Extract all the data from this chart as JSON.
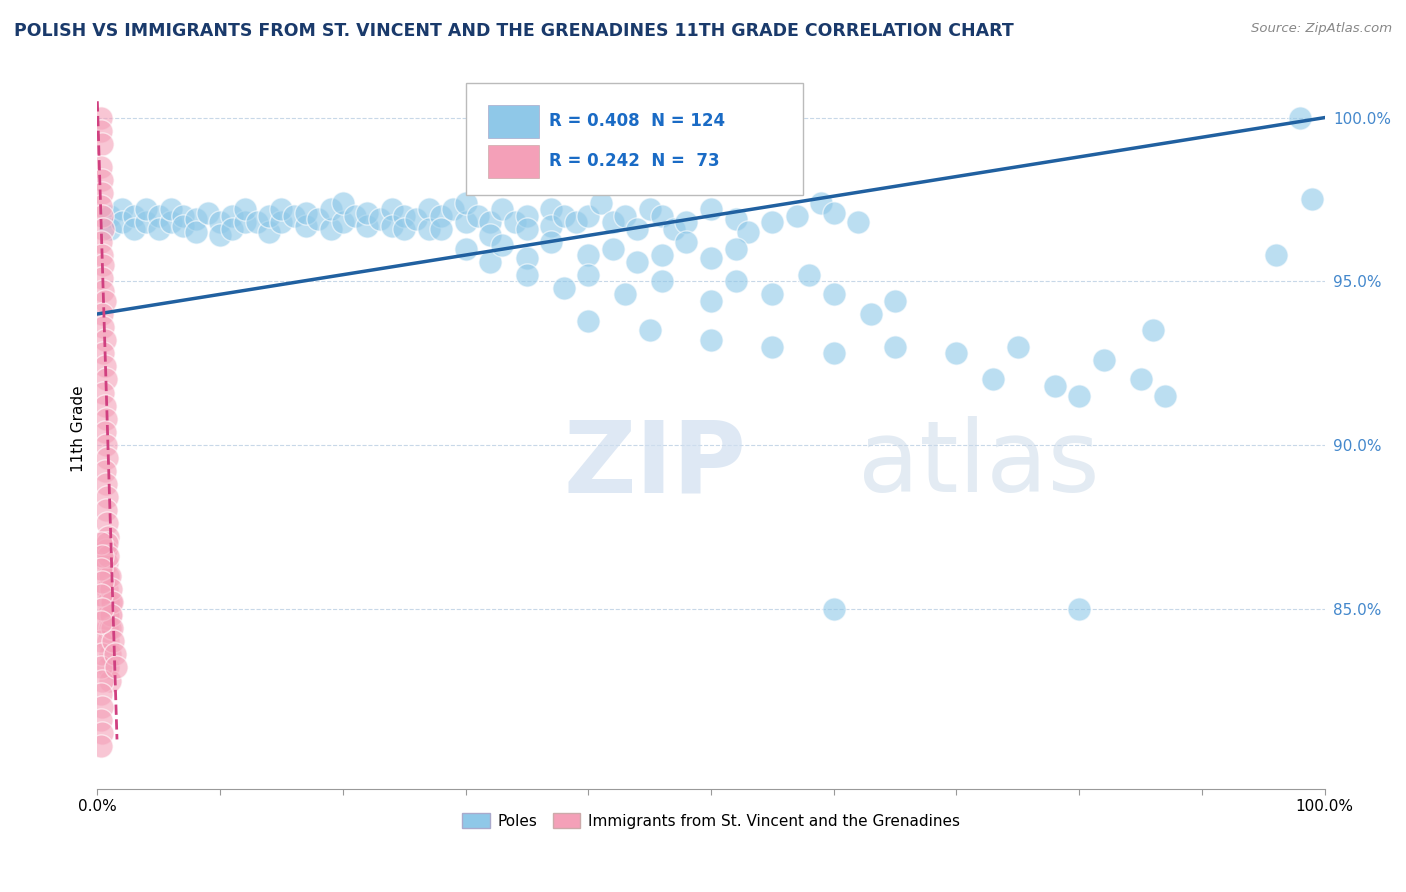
{
  "title": "POLISH VS IMMIGRANTS FROM ST. VINCENT AND THE GRENADINES 11TH GRADE CORRELATION CHART",
  "source": "Source: ZipAtlas.com",
  "ylabel": "11th Grade",
  "right_yticks": [
    "85.0%",
    "90.0%",
    "95.0%",
    "100.0%"
  ],
  "right_ytick_vals": [
    0.85,
    0.9,
    0.95,
    1.0
  ],
  "legend_blue_R": "R = 0.408",
  "legend_blue_N": "N = 124",
  "legend_pink_R": "R = 0.242",
  "legend_pink_N": "N =  73",
  "legend_label_blue": "Poles",
  "legend_label_pink": "Immigrants from St. Vincent and the Grenadines",
  "blue_color": "#8fc8e8",
  "pink_color": "#f4a0b8",
  "line_blue_color": "#2060a0",
  "line_pink_color": "#d04080",
  "title_color": "#1a3a6b",
  "legend_text_color": "#1a6bc5",
  "blue_dots": [
    [
      0.01,
      0.97
    ],
    [
      0.01,
      0.966
    ],
    [
      0.02,
      0.972
    ],
    [
      0.02,
      0.968
    ],
    [
      0.03,
      0.97
    ],
    [
      0.03,
      0.966
    ],
    [
      0.04,
      0.968
    ],
    [
      0.04,
      0.972
    ],
    [
      0.05,
      0.97
    ],
    [
      0.05,
      0.966
    ],
    [
      0.06,
      0.968
    ],
    [
      0.06,
      0.972
    ],
    [
      0.07,
      0.97
    ],
    [
      0.07,
      0.967
    ],
    [
      0.08,
      0.969
    ],
    [
      0.08,
      0.965
    ],
    [
      0.09,
      0.971
    ],
    [
      0.1,
      0.968
    ],
    [
      0.1,
      0.964
    ],
    [
      0.11,
      0.97
    ],
    [
      0.11,
      0.966
    ],
    [
      0.12,
      0.968
    ],
    [
      0.12,
      0.972
    ],
    [
      0.13,
      0.968
    ],
    [
      0.14,
      0.965
    ],
    [
      0.14,
      0.97
    ],
    [
      0.15,
      0.968
    ],
    [
      0.15,
      0.972
    ],
    [
      0.16,
      0.97
    ],
    [
      0.17,
      0.967
    ],
    [
      0.17,
      0.971
    ],
    [
      0.18,
      0.969
    ],
    [
      0.19,
      0.966
    ],
    [
      0.19,
      0.972
    ],
    [
      0.2,
      0.968
    ],
    [
      0.2,
      0.974
    ],
    [
      0.21,
      0.97
    ],
    [
      0.22,
      0.967
    ],
    [
      0.22,
      0.971
    ],
    [
      0.23,
      0.969
    ],
    [
      0.24,
      0.972
    ],
    [
      0.24,
      0.967
    ],
    [
      0.25,
      0.97
    ],
    [
      0.25,
      0.966
    ],
    [
      0.26,
      0.969
    ],
    [
      0.27,
      0.972
    ],
    [
      0.27,
      0.966
    ],
    [
      0.28,
      0.97
    ],
    [
      0.28,
      0.966
    ],
    [
      0.29,
      0.972
    ],
    [
      0.3,
      0.968
    ],
    [
      0.3,
      0.974
    ],
    [
      0.31,
      0.97
    ],
    [
      0.32,
      0.968
    ],
    [
      0.32,
      0.964
    ],
    [
      0.33,
      0.972
    ],
    [
      0.34,
      0.968
    ],
    [
      0.35,
      0.97
    ],
    [
      0.35,
      0.966
    ],
    [
      0.37,
      0.972
    ],
    [
      0.37,
      0.967
    ],
    [
      0.38,
      0.97
    ],
    [
      0.39,
      0.968
    ],
    [
      0.4,
      0.97
    ],
    [
      0.41,
      0.974
    ],
    [
      0.42,
      0.968
    ],
    [
      0.43,
      0.97
    ],
    [
      0.44,
      0.966
    ],
    [
      0.45,
      0.972
    ],
    [
      0.46,
      0.97
    ],
    [
      0.47,
      0.966
    ],
    [
      0.48,
      0.968
    ],
    [
      0.5,
      0.972
    ],
    [
      0.52,
      0.969
    ],
    [
      0.53,
      0.965
    ],
    [
      0.55,
      0.968
    ],
    [
      0.57,
      0.97
    ],
    [
      0.59,
      0.974
    ],
    [
      0.6,
      0.971
    ],
    [
      0.62,
      0.968
    ],
    [
      0.3,
      0.96
    ],
    [
      0.32,
      0.956
    ],
    [
      0.33,
      0.961
    ],
    [
      0.35,
      0.957
    ],
    [
      0.37,
      0.962
    ],
    [
      0.4,
      0.958
    ],
    [
      0.42,
      0.96
    ],
    [
      0.44,
      0.956
    ],
    [
      0.46,
      0.958
    ],
    [
      0.48,
      0.962
    ],
    [
      0.5,
      0.957
    ],
    [
      0.52,
      0.96
    ],
    [
      0.35,
      0.952
    ],
    [
      0.38,
      0.948
    ],
    [
      0.4,
      0.952
    ],
    [
      0.43,
      0.946
    ],
    [
      0.46,
      0.95
    ],
    [
      0.5,
      0.944
    ],
    [
      0.52,
      0.95
    ],
    [
      0.55,
      0.946
    ],
    [
      0.58,
      0.952
    ],
    [
      0.6,
      0.946
    ],
    [
      0.63,
      0.94
    ],
    [
      0.65,
      0.944
    ],
    [
      0.4,
      0.938
    ],
    [
      0.45,
      0.935
    ],
    [
      0.5,
      0.932
    ],
    [
      0.55,
      0.93
    ],
    [
      0.6,
      0.928
    ],
    [
      0.65,
      0.93
    ],
    [
      0.7,
      0.928
    ],
    [
      0.73,
      0.92
    ],
    [
      0.78,
      0.918
    ],
    [
      0.8,
      0.915
    ],
    [
      0.75,
      0.93
    ],
    [
      0.82,
      0.926
    ],
    [
      0.85,
      0.92
    ],
    [
      0.87,
      0.915
    ],
    [
      0.8,
      0.85
    ],
    [
      0.6,
      0.85
    ],
    [
      0.98,
      1.0
    ],
    [
      0.86,
      0.935
    ],
    [
      0.96,
      0.958
    ],
    [
      0.99,
      0.975
    ]
  ],
  "pink_dots": [
    [
      0.003,
      1.0
    ],
    [
      0.003,
      0.996
    ],
    [
      0.004,
      0.992
    ],
    [
      0.003,
      0.985
    ],
    [
      0.004,
      0.981
    ],
    [
      0.004,
      0.977
    ],
    [
      0.003,
      0.973
    ],
    [
      0.004,
      0.97
    ],
    [
      0.005,
      0.966
    ],
    [
      0.003,
      0.962
    ],
    [
      0.004,
      0.958
    ],
    [
      0.005,
      0.955
    ],
    [
      0.004,
      0.951
    ],
    [
      0.005,
      0.947
    ],
    [
      0.006,
      0.944
    ],
    [
      0.004,
      0.94
    ],
    [
      0.005,
      0.936
    ],
    [
      0.006,
      0.932
    ],
    [
      0.005,
      0.928
    ],
    [
      0.006,
      0.924
    ],
    [
      0.007,
      0.92
    ],
    [
      0.005,
      0.916
    ],
    [
      0.006,
      0.912
    ],
    [
      0.007,
      0.908
    ],
    [
      0.006,
      0.904
    ],
    [
      0.007,
      0.9
    ],
    [
      0.008,
      0.896
    ],
    [
      0.006,
      0.892
    ],
    [
      0.007,
      0.888
    ],
    [
      0.008,
      0.884
    ],
    [
      0.007,
      0.88
    ],
    [
      0.008,
      0.876
    ],
    [
      0.009,
      0.872
    ],
    [
      0.007,
      0.868
    ],
    [
      0.008,
      0.864
    ],
    [
      0.009,
      0.86
    ],
    [
      0.008,
      0.856
    ],
    [
      0.009,
      0.852
    ],
    [
      0.01,
      0.848
    ],
    [
      0.008,
      0.844
    ],
    [
      0.009,
      0.84
    ],
    [
      0.01,
      0.836
    ],
    [
      0.009,
      0.832
    ],
    [
      0.01,
      0.828
    ],
    [
      0.011,
      0.852
    ],
    [
      0.009,
      0.848
    ],
    [
      0.01,
      0.844
    ],
    [
      0.003,
      0.84
    ],
    [
      0.004,
      0.836
    ],
    [
      0.003,
      0.832
    ],
    [
      0.004,
      0.828
    ],
    [
      0.003,
      0.824
    ],
    [
      0.004,
      0.82
    ],
    [
      0.003,
      0.816
    ],
    [
      0.004,
      0.812
    ],
    [
      0.003,
      0.808
    ],
    [
      0.01,
      0.86
    ],
    [
      0.011,
      0.856
    ],
    [
      0.012,
      0.852
    ],
    [
      0.011,
      0.848
    ],
    [
      0.012,
      0.844
    ],
    [
      0.013,
      0.84
    ],
    [
      0.014,
      0.836
    ],
    [
      0.015,
      0.832
    ],
    [
      0.008,
      0.87
    ],
    [
      0.009,
      0.866
    ],
    [
      0.003,
      0.87
    ],
    [
      0.004,
      0.866
    ],
    [
      0.003,
      0.862
    ],
    [
      0.004,
      0.858
    ],
    [
      0.003,
      0.854
    ],
    [
      0.004,
      0.85
    ],
    [
      0.003,
      0.846
    ]
  ],
  "blue_line_x": [
    0.0,
    1.0
  ],
  "blue_line_y": [
    0.94,
    1.0
  ],
  "pink_line_x": [
    0.0,
    0.016
  ],
  "pink_line_y": [
    1.005,
    0.81
  ],
  "xmin": 0.0,
  "xmax": 1.0,
  "ymin": 0.795,
  "ymax": 1.015,
  "background_color": "#ffffff",
  "grid_color": "#c8d8e8"
}
